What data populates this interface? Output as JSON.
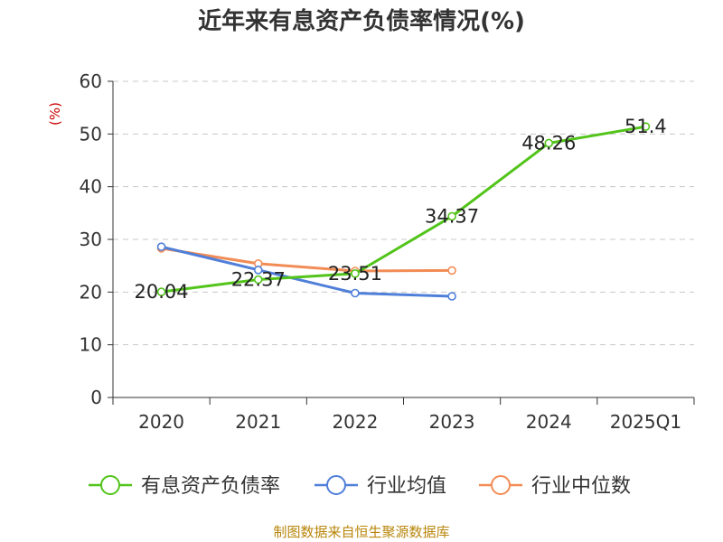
{
  "chart_data": {
    "type": "line",
    "title": "近年来有息资产负债率情况(%)",
    "xlabel": "",
    "ylabel": "(%)",
    "ylim": [
      0,
      60
    ],
    "yticks": [
      "0",
      "10",
      "20",
      "30",
      "40",
      "50",
      "60"
    ],
    "categories": [
      "2020",
      "2021",
      "2022",
      "2023",
      "2024",
      "2025Q1"
    ],
    "grid": true,
    "legend_position": "bottom",
    "series": [
      {
        "name": "有息资产负债率",
        "color": "#52c41a",
        "values": [
          20.04,
          22.37,
          23.51,
          34.37,
          48.26,
          51.4
        ],
        "labels": [
          "20.04",
          "22.37",
          "23.51",
          "34.37",
          "48.26",
          "51.4"
        ]
      },
      {
        "name": "行业均值",
        "color": "#4f7fd9",
        "values": [
          28.6,
          24.2,
          19.8,
          19.2,
          null,
          null
        ]
      },
      {
        "name": "行业中位数",
        "color": "#f28c55",
        "values": [
          28.3,
          25.4,
          24.0,
          24.1,
          null,
          null
        ]
      }
    ],
    "source": "制图数据来自恒生聚源数据库",
    "ylabel_color": "#cc0000",
    "source_color": "#b8860b"
  }
}
